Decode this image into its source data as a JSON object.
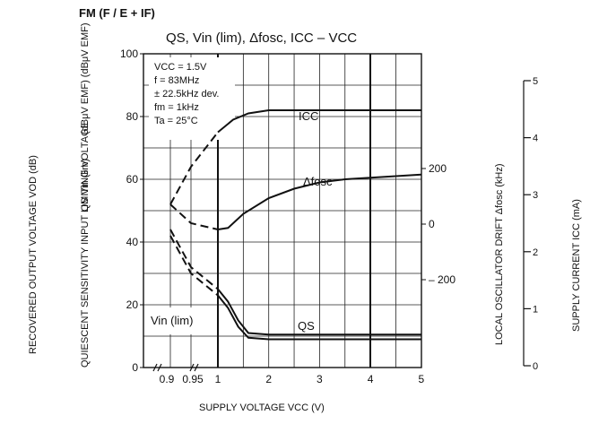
{
  "header": {
    "mode": "FM  (F / E + IF)",
    "title": "QS, Vin (lim), Δfosc, ICC  –  VCC"
  },
  "conditions": [
    "VCC = 1.5V",
    "f = 83MHz",
    "± 22.5kHz dev.",
    "fm = 1kHz",
    "Ta = 25°C"
  ],
  "chart_data": {
    "type": "line",
    "title": "QS, Vin (lim), Δfosc, ICC – VCC",
    "xlabel": "SUPPLY VOLTAGE   VCC   (V)",
    "x_ticks": [
      "0.9",
      "0.95",
      "1",
      "2",
      "3",
      "4",
      "5"
    ],
    "left_axis": {
      "label_outer": "RECOVERED OUTPUT VOLTAGE   VOD   (dB)",
      "label_inner": "QUIESCENT SENSITIVITY  INPUT LIMITING VOLTAGE",
      "label_symbols": "QS  Vin (lim)",
      "label_units": "(dBμV EMF)  (dBμV EMF)",
      "ticks": [
        "0",
        "20",
        "40",
        "60",
        "80",
        "100"
      ],
      "range": [
        0,
        100
      ]
    },
    "right_axis_1": {
      "label": "LOCAL OSCILLATOR DRIFT   Δfosc   (kHz)",
      "ticks": [
        "200",
        "0",
        "– 200"
      ],
      "values": [
        200,
        0,
        -200
      ]
    },
    "right_axis_2": {
      "label": "SUPPLY CURRENT   ICC   (mA)",
      "ticks": [
        "0",
        "1",
        "2",
        "3",
        "4",
        "5"
      ],
      "range": [
        0,
        5
      ]
    },
    "series": [
      {
        "name": "ICC",
        "axis": "left",
        "x": [
          0.9,
          0.95,
          1.0,
          1.3,
          1.6,
          2.0,
          2.5,
          3.0,
          4.0,
          5.0
        ],
        "y": [
          52,
          64,
          75,
          79,
          81,
          82,
          82,
          82,
          82,
          82
        ]
      },
      {
        "name": "Δfosc",
        "axis": "left",
        "x": [
          0.9,
          0.95,
          1.0,
          1.2,
          1.5,
          2.0,
          2.5,
          3.0,
          3.5,
          4.0,
          4.5,
          5.0
        ],
        "y": [
          52,
          46,
          44,
          44.5,
          49,
          54,
          57,
          59,
          60,
          60.5,
          61,
          61.5
        ]
      },
      {
        "name": "QS",
        "axis": "left",
        "x": [
          0.9,
          0.95,
          1.0,
          1.2,
          1.4,
          1.6,
          2.0,
          3.0,
          4.0,
          5.0
        ],
        "y": [
          44,
          32,
          25,
          21,
          15,
          11,
          10.5,
          10.5,
          10.5,
          10.5
        ]
      },
      {
        "name": "Vin (lim)",
        "axis": "left",
        "x": [
          0.9,
          0.95,
          1.0,
          1.2,
          1.4,
          1.6,
          2.0,
          3.0,
          4.0,
          5.0
        ],
        "y": [
          42,
          30,
          23,
          19,
          13,
          9.5,
          9,
          9,
          9,
          9
        ]
      }
    ],
    "series_labels": {
      "icc": "ICC",
      "dfosc": "Δfosc",
      "qs": "QS",
      "vin": "Vin (lim)"
    }
  }
}
